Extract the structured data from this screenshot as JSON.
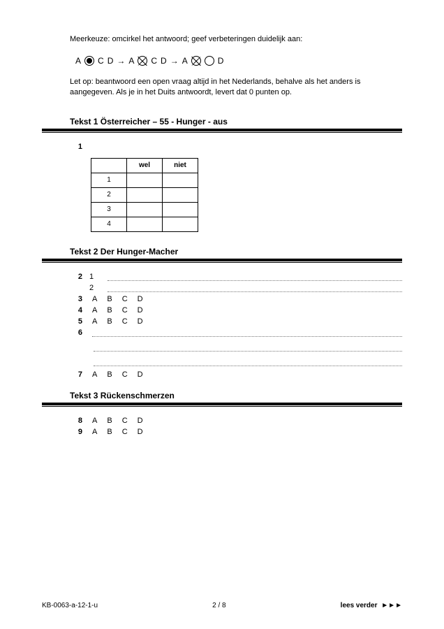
{
  "intro": {
    "line1": "Meerkeuze: omcirkel het antwoord; geef verbeteringen duidelijk aan:",
    "note": "Let op: beantwoord een open vraag altijd in het Nederlands, behalve als het anders is aangegeven. Als je in het Duits antwoordt, levert dat 0 punten op."
  },
  "mc_examples": {
    "letters": [
      "A",
      "B",
      "C",
      "D"
    ],
    "arrow": "→"
  },
  "sections": [
    {
      "label": "Tekst 1  Österreicher – 55 - Hunger - aus",
      "table": {
        "cols": [
          "wel",
          "niet"
        ],
        "rows": [
          "1",
          "2",
          "3",
          "4"
        ]
      }
    },
    {
      "label": "Tekst 2  Der Hunger-Macher"
    },
    {
      "label": "Tekst 3  Rückenschmerzen"
    }
  ],
  "questions": {
    "q2_subs": [
      "1",
      "2"
    ],
    "mc_letters": [
      "A",
      "B",
      "C",
      "D"
    ],
    "q3_label": "3",
    "q4_label": "4",
    "q5_label": "5",
    "q6_label": "6",
    "q7_label": "7",
    "q8_label": "8",
    "q9_label": "9",
    "q2_label": "2"
  },
  "footer": {
    "left": "KB-0063-a-12-1-u",
    "center": "2 / 8",
    "right": "lees verder",
    "tri": "►►►"
  },
  "colors": {
    "text": "#000000",
    "bg": "#ffffff",
    "dotted": "#777777"
  }
}
